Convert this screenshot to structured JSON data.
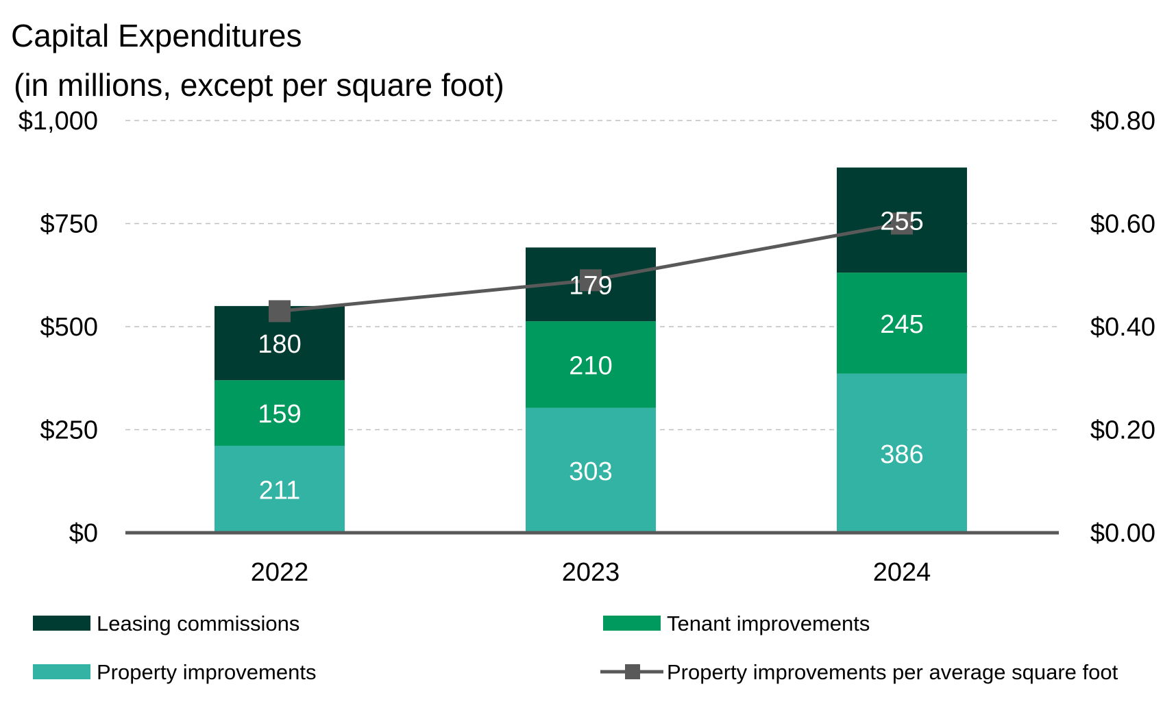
{
  "chart_data": {
    "type": "bar",
    "stacked": true,
    "title": "Capital Expenditures",
    "subtitle": "(in millions, except per square foot)",
    "categories": [
      "2022",
      "2023",
      "2024"
    ],
    "series": [
      {
        "name": "Property improvements",
        "values": [
          211,
          303,
          386
        ],
        "color": "#33b3a3"
      },
      {
        "name": "Tenant improvements",
        "values": [
          159,
          210,
          245
        ],
        "color": "#019a5e"
      },
      {
        "name": "Leasing commissions",
        "values": [
          180,
          179,
          255
        ],
        "color": "#003c32"
      }
    ],
    "line_series": {
      "name": "Property improvements per average square foot",
      "values": [
        0.43,
        0.49,
        0.6
      ],
      "color": "#595959",
      "axis": "right"
    },
    "y_left": {
      "range": [
        0,
        1000
      ],
      "ticks": [
        0,
        250,
        500,
        750,
        1000
      ],
      "tick_labels": [
        "$0",
        "$250",
        "$500",
        "$750",
        "$1,000"
      ]
    },
    "y_right": {
      "range": [
        0,
        0.8
      ],
      "ticks": [
        0,
        0.2,
        0.4,
        0.6,
        0.8
      ],
      "tick_labels": [
        "$0.00",
        "$0.20",
        "$0.40",
        "$0.60",
        "$0.80"
      ]
    },
    "grid": true,
    "legend_placement": "bottom",
    "legend_order": [
      "Leasing commissions",
      "Tenant improvements",
      "Property improvements",
      "Property improvements per average square foot"
    ]
  }
}
